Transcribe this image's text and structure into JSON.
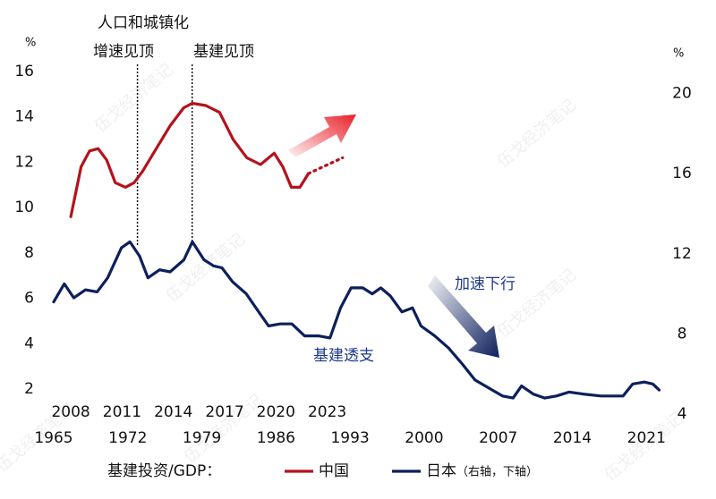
{
  "chart_data": {
    "type": "line",
    "annotations": {
      "urbanization_1": "人口和城镇化",
      "urbanization_2": "增速见顶",
      "infra_peak": "基建见顶",
      "accelerating": "加速下行",
      "overdraft": "基建透支"
    },
    "watermark": "伍戈经济笔记",
    "legend_title": "基建投资/GDP：",
    "legend_note": "（右轴，下轴）",
    "yunit": "%",
    "y2unit": "%",
    "xlim": [
      1965,
      2022.5
    ],
    "xticks": [
      1965,
      1972,
      1979,
      1986,
      1993,
      2000,
      2007,
      2014,
      2021
    ],
    "x2lim": [
      2007,
      2042.6
    ],
    "x2ticks": [
      2008,
      2011,
      2014,
      2017,
      2020,
      2023
    ],
    "ylim": [
      0.9,
      16
    ],
    "yticks": [
      2,
      4,
      6,
      8,
      10,
      12,
      14,
      16
    ],
    "y2lim": [
      4,
      21.1
    ],
    "y2ticks": [
      4,
      8,
      12,
      16,
      20
    ],
    "vlines": [
      2011.9,
      2015.1
    ],
    "series": [
      {
        "name": "中国",
        "color": "#b5121b",
        "xaxis": "x2",
        "x": [
          2008.0,
          2008.6,
          2009.1,
          2009.6,
          2010.1,
          2010.6,
          2011.2,
          2011.7,
          2012.2,
          2013.0,
          2013.8,
          2014.6,
          2015.1,
          2015.9,
          2016.7,
          2017.5,
          2018.3,
          2019.1,
          2019.9,
          2020.4,
          2020.9,
          2021.4,
          2021.9
        ],
        "values": [
          9.6,
          11.8,
          12.5,
          12.6,
          12.1,
          11.1,
          10.9,
          11.1,
          11.6,
          12.6,
          13.6,
          14.4,
          14.6,
          14.5,
          14.2,
          13.0,
          12.2,
          11.9,
          12.4,
          11.8,
          10.9,
          10.9,
          11.5
        ]
      },
      {
        "name": "日本",
        "color": "#0d1f5c",
        "axis": "y2",
        "x": [
          1965,
          1966,
          1966.9,
          1968,
          1969.1,
          1970.1,
          1971.4,
          1972.2,
          1973.1,
          1973.9,
          1975,
          1976,
          1977.3,
          1978.1,
          1979.2,
          1980.1,
          1980.9,
          1981.9,
          1983.2,
          1984.5,
          1985.3,
          1986.4,
          1987.5,
          1988.7,
          1990,
          1991.1,
          1992.1,
          1993.1,
          1994.2,
          1995.1,
          1995.9,
          1996.8,
          1997.9,
          1998.9,
          1999.7,
          2001,
          2002.3,
          2003.6,
          2004.8,
          2006.1,
          2007.4,
          2008.4,
          2009.2,
          2010.3,
          2011.4,
          2012.5,
          2013.7,
          2015,
          2016.7,
          2018.8,
          2019.7,
          2020.8,
          2021.6,
          2022.2
        ],
        "values": [
          9.6,
          10.5,
          9.8,
          10.2,
          10.1,
          10.8,
          12.3,
          12.6,
          11.9,
          10.8,
          11.2,
          11.1,
          11.7,
          12.6,
          11.7,
          11.4,
          11.3,
          10.6,
          10.0,
          9.0,
          8.4,
          8.5,
          8.5,
          7.9,
          7.9,
          7.8,
          9.3,
          10.3,
          10.3,
          10.0,
          10.3,
          9.9,
          9.1,
          9.3,
          8.4,
          7.9,
          7.3,
          6.5,
          5.7,
          5.3,
          4.9,
          4.8,
          5.4,
          5.0,
          4.8,
          4.9,
          5.1,
          5.0,
          4.9,
          4.9,
          5.5,
          5.6,
          5.5,
          5.2
        ]
      }
    ],
    "projection": {
      "color": "#b5121b",
      "xaxis": "x2",
      "x": [
        2021.9,
        2023.9
      ],
      "values": [
        11.5,
        12.2
      ]
    }
  }
}
